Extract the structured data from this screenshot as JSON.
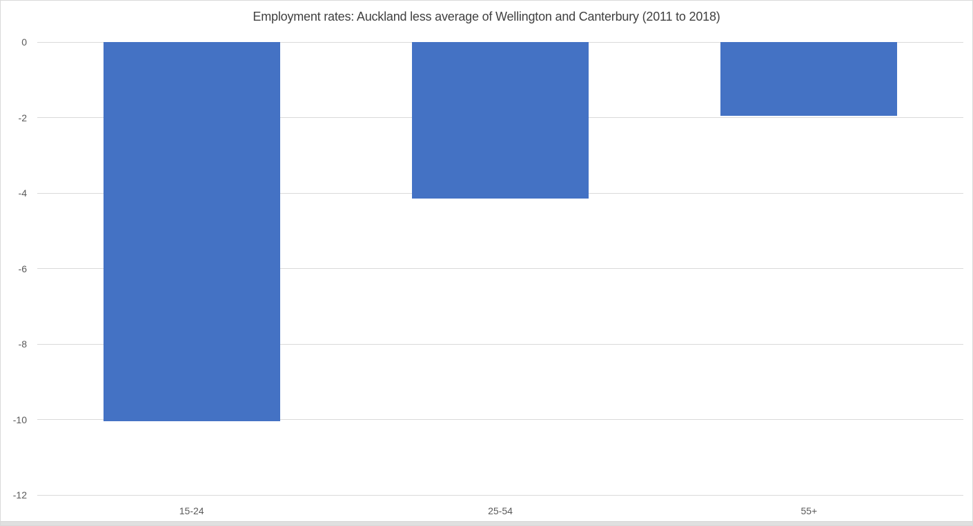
{
  "chart_data": {
    "type": "bar",
    "title": "Employment rates: Auckland less average of Wellington and Canterbury (2011 to 2018)",
    "categories": [
      "15-24",
      "25-54",
      "55+"
    ],
    "values": [
      -10.05,
      -4.15,
      -1.95
    ],
    "xlabel": "",
    "ylabel": "",
    "ylim": [
      -12,
      0
    ],
    "yticks": [
      0,
      -2,
      -4,
      -6,
      -8,
      -10,
      -12
    ],
    "grid": true,
    "legend": "none",
    "colors": {
      "bar_fill": "#4472C4",
      "gridline": "#D9D9D9",
      "title_text": "#404040",
      "tick_label_text": "#595959",
      "chart_border": "#D9D9D9",
      "bottom_strip": "#E0E0E0"
    }
  }
}
